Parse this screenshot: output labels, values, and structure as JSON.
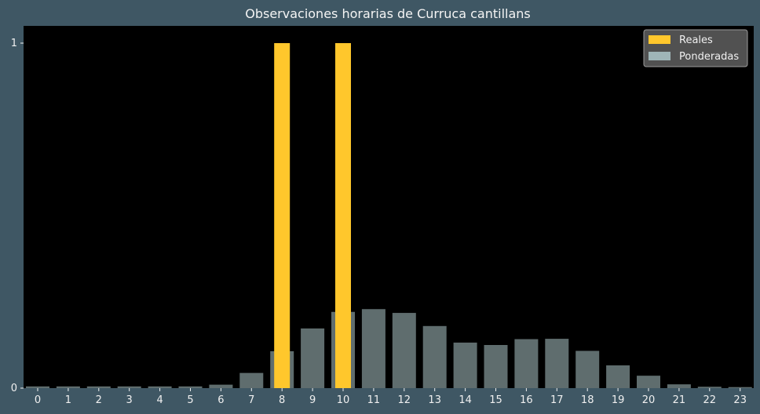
{
  "chart_data": {
    "type": "bar",
    "title": "Observaciones horarias de Curruca cantillans",
    "xlabel": "",
    "ylabel": "",
    "categories": [
      "0",
      "1",
      "2",
      "3",
      "4",
      "5",
      "6",
      "7",
      "8",
      "9",
      "10",
      "11",
      "12",
      "13",
      "14",
      "15",
      "16",
      "17",
      "18",
      "19",
      "20",
      "21",
      "22",
      "23"
    ],
    "ylim": [
      0,
      1.05
    ],
    "yticks": [
      0,
      1
    ],
    "grid": false,
    "legend_position": "top-right",
    "series": [
      {
        "name": "Reales",
        "color": "#ffc72c",
        "values": [
          0,
          0,
          0,
          0,
          0,
          0,
          0,
          0,
          1,
          0,
          1,
          0,
          0,
          0,
          0,
          0,
          0,
          0,
          0,
          0,
          0,
          0,
          0,
          0
        ]
      },
      {
        "name": "Ponderadas",
        "color": "#9fb5b8",
        "values": [
          0.005,
          0.005,
          0.005,
          0.005,
          0.005,
          0.005,
          0.01,
          0.044,
          0.107,
          0.173,
          0.221,
          0.229,
          0.218,
          0.18,
          0.132,
          0.125,
          0.142,
          0.143,
          0.108,
          0.066,
          0.036,
          0.011,
          0.004,
          0.003
        ]
      }
    ]
  },
  "colors": {
    "figure_bg": "#3f5764",
    "plot_bg": "#000000",
    "text": "#f0f0f0"
  }
}
